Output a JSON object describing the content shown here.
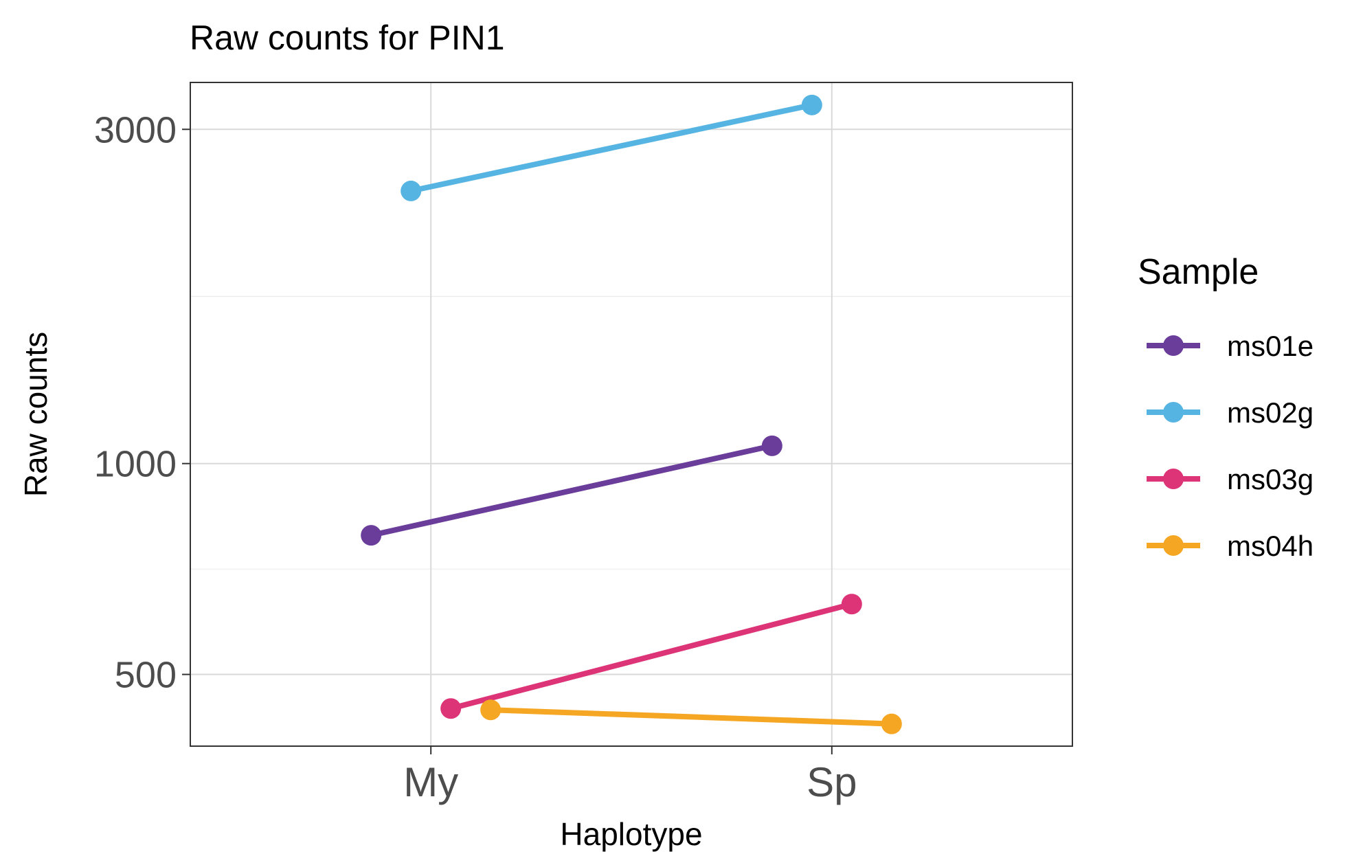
{
  "chart_data": {
    "type": "line",
    "title": "Raw counts for PIN1",
    "xlabel": "Haplotype",
    "ylabel": "Raw counts",
    "categories": [
      "My",
      "Sp"
    ],
    "y_scale": "log10",
    "yticks": [
      500,
      1000,
      3000
    ],
    "ylim": [
      395,
      3500
    ],
    "grid": true,
    "legend": {
      "title": "Sample",
      "position": "right"
    },
    "series": [
      {
        "name": "ms01e",
        "color": "#6a3d9a",
        "values": [
          790,
          1060
        ]
      },
      {
        "name": "ms02g",
        "color": "#56b4e2",
        "values": [
          2450,
          3250
        ]
      },
      {
        "name": "ms03g",
        "color": "#dd3377",
        "values": [
          447,
          630
        ]
      },
      {
        "name": "ms04h",
        "color": "#f5a623",
        "values": [
          445,
          425
        ]
      }
    ]
  }
}
